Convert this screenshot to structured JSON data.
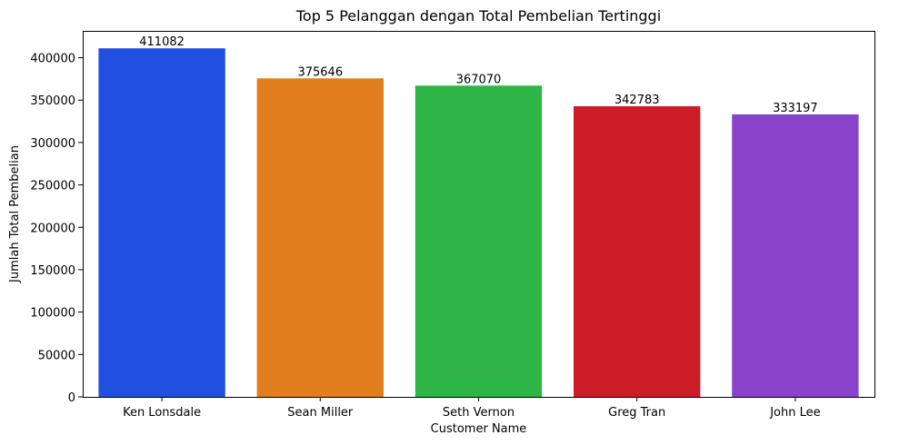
{
  "chart_data": {
    "type": "bar",
    "title": "Top 5 Pelanggan dengan Total Pembelian Tertinggi",
    "xlabel": "Customer Name",
    "ylabel": "Jumlah Total Pembelian",
    "categories": [
      "Ken Lonsdale",
      "Sean Miller",
      "Seth Vernon",
      "Greg Tran",
      "John Lee"
    ],
    "values": [
      411082,
      375646,
      367070,
      342783,
      333197
    ],
    "data_labels": [
      "411082",
      "375646",
      "367070",
      "342783",
      "333197"
    ],
    "colors": [
      "#2150e0",
      "#e17e1f",
      "#2fb446",
      "#cb1c27",
      "#8943cb"
    ],
    "ylim": [
      0,
      431636
    ],
    "yticks": [
      0,
      50000,
      100000,
      150000,
      200000,
      250000,
      300000,
      350000,
      400000
    ],
    "grid": false,
    "legend": "none"
  }
}
